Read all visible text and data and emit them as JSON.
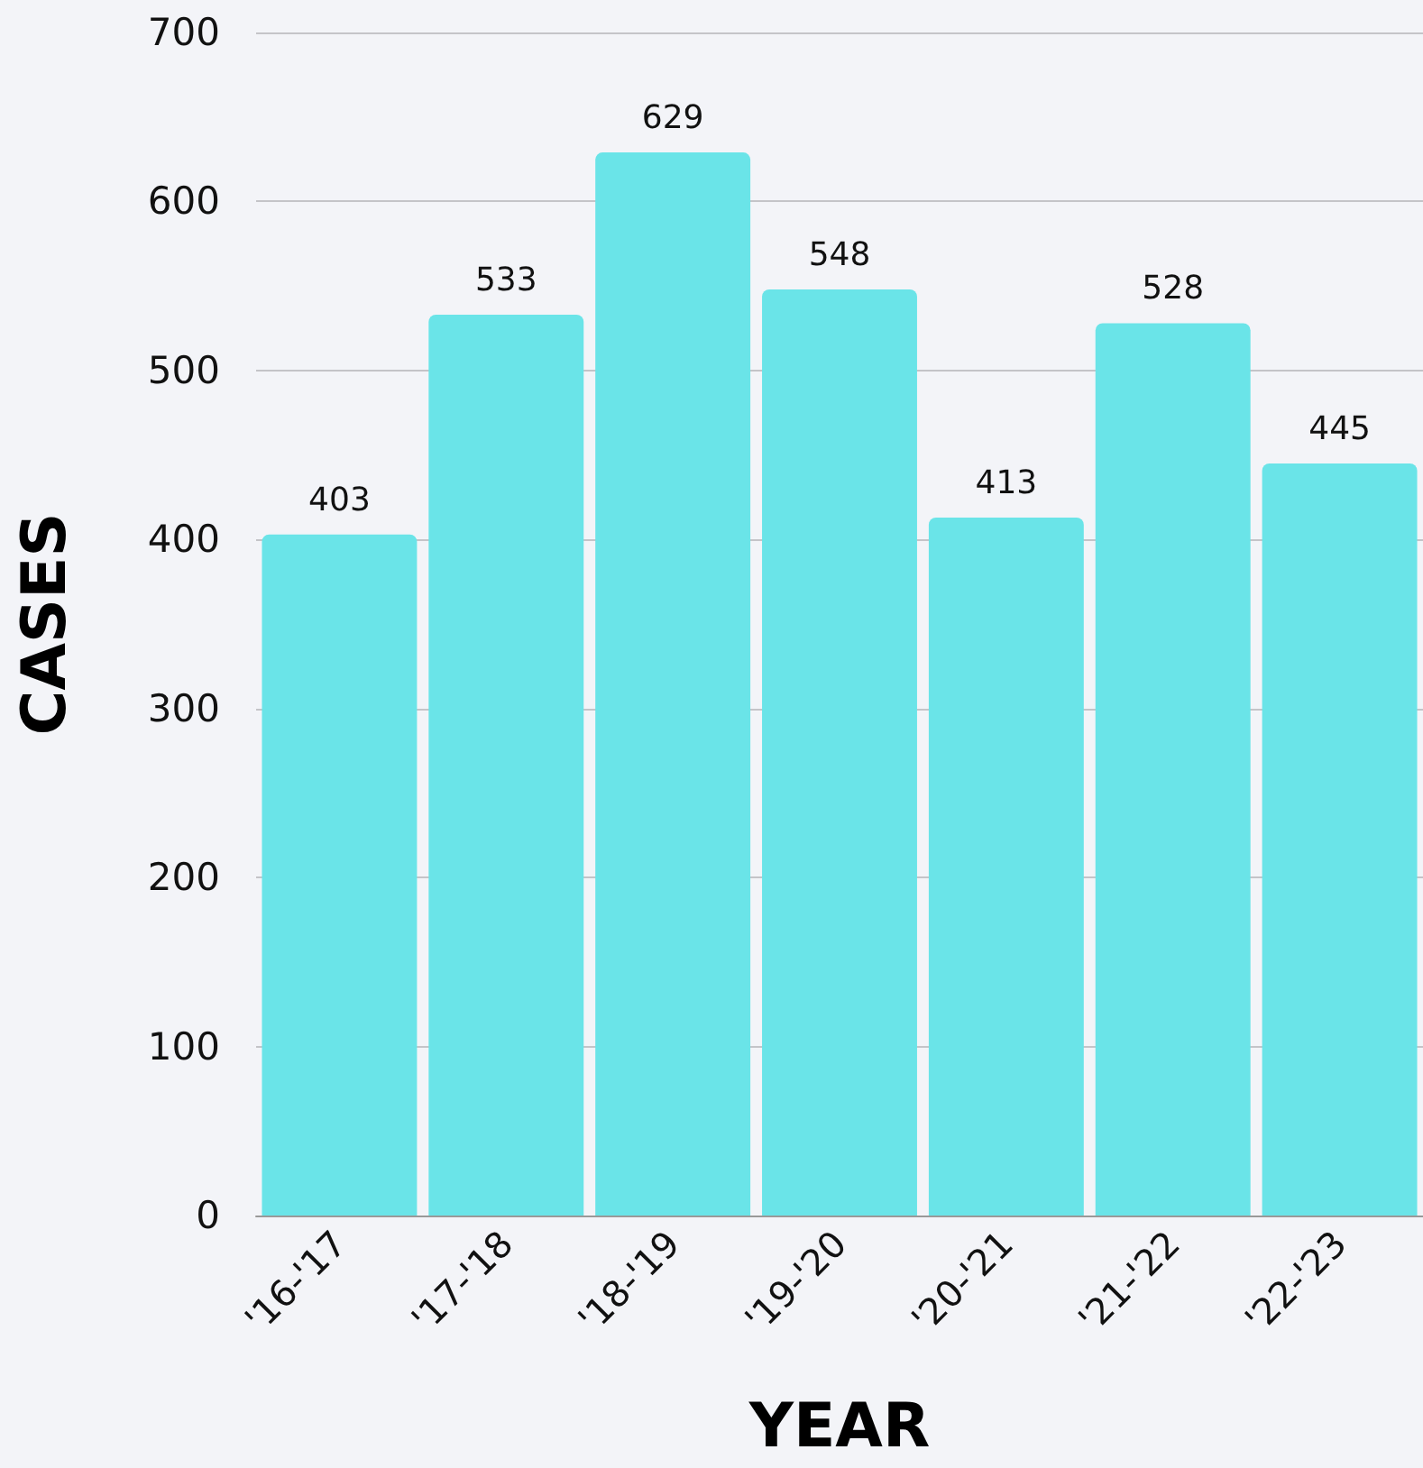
{
  "chart_data": {
    "type": "bar",
    "xlabel": "YEAR",
    "ylabel": "CASES",
    "categories": [
      "'16-'17",
      "'17-'18",
      "'18-'19",
      "'19-'20",
      "'20-'21",
      "'21-'22",
      "'22-'23"
    ],
    "values": [
      403,
      533,
      629,
      548,
      413,
      528,
      445
    ],
    "color": "#6ae4e8",
    "ylim": [
      0,
      700
    ],
    "yticks": [
      0,
      100,
      200,
      300,
      400,
      500,
      600,
      700
    ],
    "grid": "y",
    "data_labels": true
  }
}
